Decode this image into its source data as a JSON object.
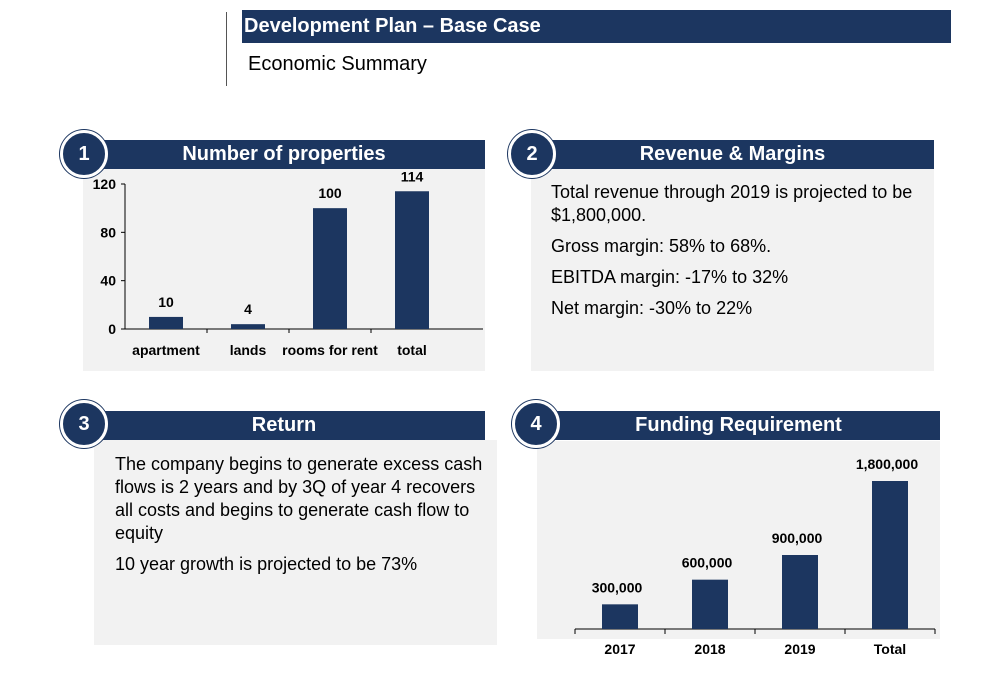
{
  "header": {
    "title": "Development Plan – Base Case",
    "subtitle": "Economic Summary"
  },
  "panels": [
    {
      "number": "1",
      "title": "Number of properties"
    },
    {
      "number": "2",
      "title": "Revenue & Margins"
    },
    {
      "number": "3",
      "title": "Return"
    },
    {
      "number": "4",
      "title": "Funding Requirement"
    }
  ],
  "bullet_glyph": "",
  "revenue_bullets": [
    "Total revenue through 2019 is projected to be $1,800,000.",
    "Gross margin: 58% to 68%.",
    "EBITDA margin: -17% to 32%",
    "Net margin: -30% to 22%"
  ],
  "return_bullets": [
    "The company begins to generate excess cash flows is 2 years and by 3Q of year 4 recovers all costs and begins to generate cash flow to equity",
    "10 year growth is projected to be 73%"
  ],
  "colors": {
    "navy": "#1c3660",
    "panel": "#f2f2f2"
  },
  "chart_data": [
    {
      "type": "bar",
      "title": "Number of properties",
      "categories": [
        "apartment",
        "lands",
        "rooms for rent",
        "total"
      ],
      "values": [
        10,
        4,
        100,
        114
      ],
      "data_labels": [
        "10",
        "4",
        "100",
        "114"
      ],
      "yticks": [
        "0",
        "40",
        "80",
        "120"
      ],
      "ylim": [
        0,
        120
      ],
      "grid": false,
      "color": "#1c3660"
    },
    {
      "type": "bar",
      "title": "Funding Requirement",
      "categories": [
        "2017",
        "2018",
        "2019",
        "Total"
      ],
      "values": [
        300000,
        600000,
        900000,
        1800000
      ],
      "data_labels": [
        "300,000",
        "600,000",
        "900,000",
        "1,800,000"
      ],
      "ylim": [
        0,
        1800000
      ],
      "grid": false,
      "color": "#1c3660"
    }
  ]
}
